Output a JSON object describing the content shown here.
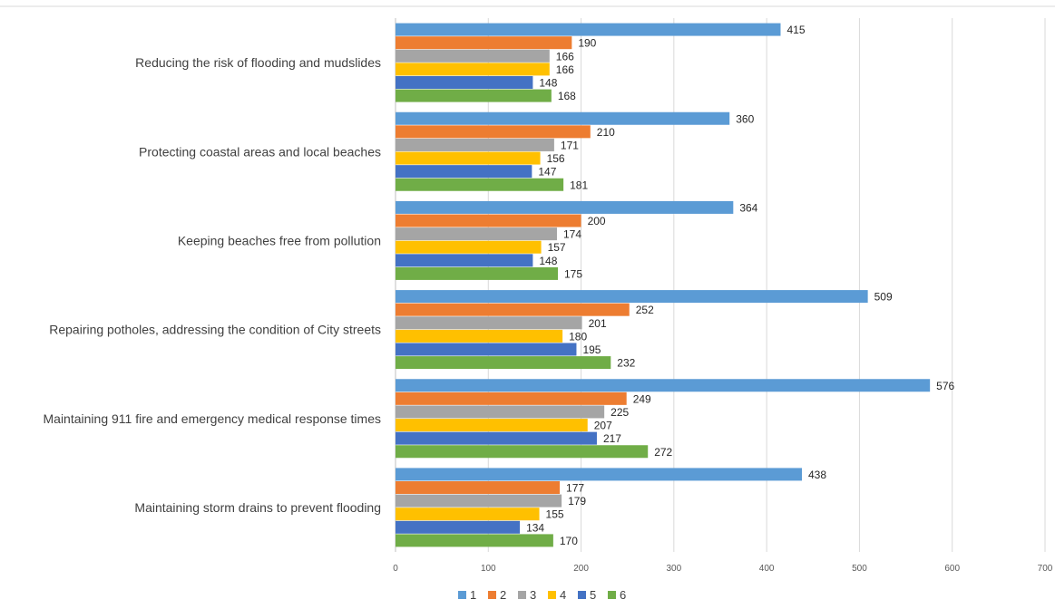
{
  "chart_data": {
    "type": "bar",
    "orientation": "horizontal",
    "title": "",
    "xlabel": "",
    "ylabel": "",
    "xlim": [
      0,
      700
    ],
    "x_ticks": [
      0,
      100,
      200,
      300,
      400,
      500,
      600,
      700
    ],
    "grid": "vertical",
    "legend_position": "bottom",
    "categories": [
      "Reducing the risk of flooding and mudslides",
      "Protecting coastal areas and local beaches",
      "Keeping beaches free from pollution",
      "Repairing potholes, addressing the condition of City streets",
      "Maintaining 911 fire and emergency medical response times",
      "Maintaining storm drains to prevent flooding"
    ],
    "series": [
      {
        "name": "1",
        "color": "#5B9BD5",
        "values": [
          415,
          360,
          364,
          509,
          576,
          438
        ]
      },
      {
        "name": "2",
        "color": "#ED7D31",
        "values": [
          190,
          210,
          200,
          252,
          249,
          177
        ]
      },
      {
        "name": "3",
        "color": "#A5A5A5",
        "values": [
          166,
          171,
          174,
          201,
          225,
          179
        ]
      },
      {
        "name": "4",
        "color": "#FFC000",
        "values": [
          166,
          156,
          157,
          180,
          207,
          155
        ]
      },
      {
        "name": "5",
        "color": "#4472C4",
        "values": [
          148,
          147,
          148,
          195,
          217,
          134
        ]
      },
      {
        "name": "6",
        "color": "#70AD47",
        "values": [
          168,
          181,
          175,
          232,
          272,
          170
        ]
      }
    ]
  }
}
